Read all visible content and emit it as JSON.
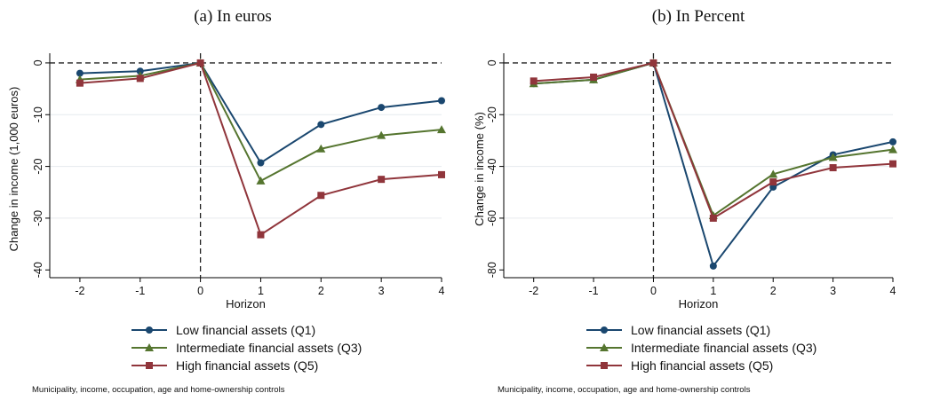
{
  "chart_data": [
    {
      "type": "line",
      "panel_title": "(a) In euros",
      "xlabel": "Horizon",
      "ylabel": "Change in income (1,000 euros)",
      "x": [
        -2,
        -1,
        0,
        1,
        2,
        3,
        4
      ],
      "xlim": [
        -2.5,
        4
      ],
      "ylim": [
        -41.5,
        0.5
      ],
      "yticks": [
        0,
        -10,
        -20,
        -30,
        -40
      ],
      "gridlines": [
        -10,
        -20,
        -30
      ],
      "reference_lines": {
        "y": 0,
        "x": 0
      },
      "series": [
        {
          "name": "Low financial assets (Q1)",
          "marker": "circle",
          "color": "#1a476f",
          "values": [
            -2.0,
            -1.6,
            0,
            -19.3,
            -11.9,
            -8.6,
            -7.3
          ]
        },
        {
          "name": "Intermediate financial assets (Q3)",
          "marker": "triangle",
          "color": "#55752f",
          "values": [
            -3.2,
            -2.5,
            0,
            -22.8,
            -16.6,
            -14.0,
            -12.9
          ]
        },
        {
          "name": "High financial assets (Q5)",
          "marker": "square",
          "color": "#90353b",
          "values": [
            -3.9,
            -3.0,
            0,
            -33.2,
            -25.6,
            -22.5,
            -21.6
          ]
        }
      ],
      "note": "Municipality, income, occupation, age and home-ownership controls"
    },
    {
      "type": "line",
      "panel_title": "(b) In Percent",
      "xlabel": "Horizon",
      "ylabel": "Change in income (%)",
      "x": [
        -2,
        -1,
        0,
        1,
        2,
        3,
        4
      ],
      "xlim": [
        -2.5,
        4
      ],
      "ylim": [
        -83,
        1
      ],
      "yticks": [
        0,
        -20,
        -40,
        -60,
        -80
      ],
      "gridlines": [
        -20,
        -40,
        -60
      ],
      "reference_lines": {
        "y": 0,
        "x": 0
      },
      "series": [
        {
          "name": "Low financial assets (Q1)",
          "marker": "circle",
          "color": "#1a476f",
          "values": [
            -8.0,
            -6.5,
            0,
            -78.5,
            -48.0,
            -35.5,
            -30.5
          ]
        },
        {
          "name": "Intermediate financial assets (Q3)",
          "marker": "triangle",
          "color": "#55752f",
          "values": [
            -8.0,
            -6.5,
            0,
            -59.0,
            -43.0,
            -36.5,
            -33.5
          ]
        },
        {
          "name": "High financial assets (Q5)",
          "marker": "square",
          "color": "#90353b",
          "values": [
            -7.0,
            -5.5,
            0,
            -60.0,
            -46.0,
            -40.5,
            -39.0
          ]
        }
      ],
      "note": "Municipality, income, occupation, age and home-ownership controls"
    }
  ]
}
